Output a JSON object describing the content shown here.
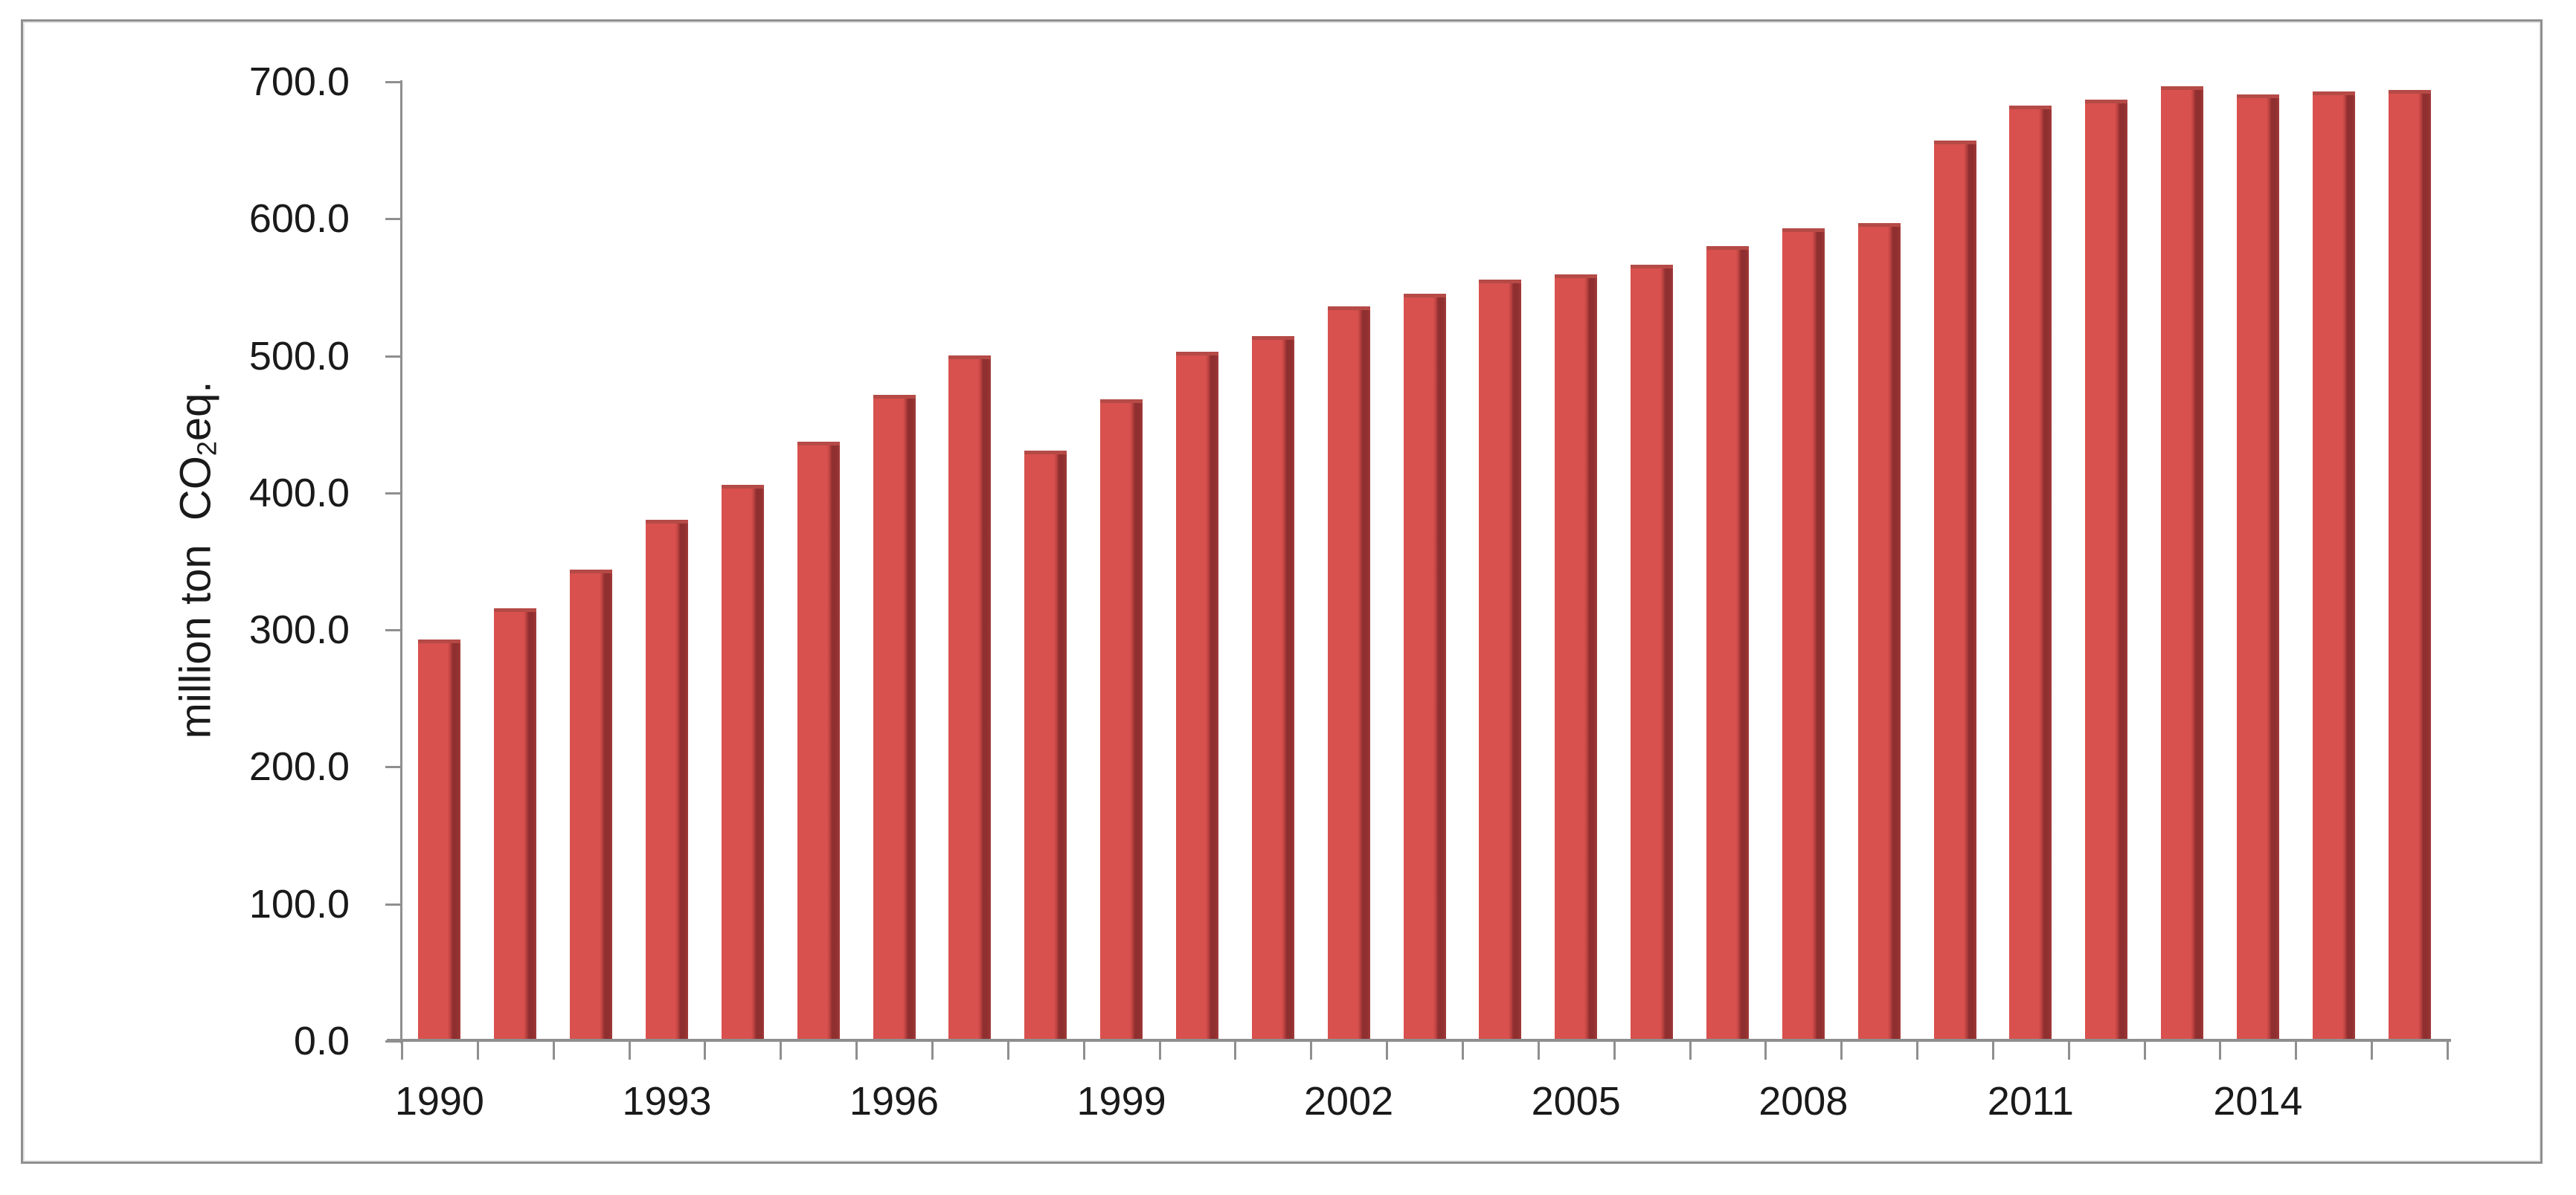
{
  "figure": {
    "background": "#ffffff",
    "border_color": "#8f8f8f"
  },
  "chart_data": {
    "type": "bar",
    "title": "",
    "ylabel": "million ton CO2eq.",
    "ylabel_prefix": "million ton  CO",
    "ylabel_sub": "2",
    "ylabel_suffix": "eq.",
    "xlabel": "",
    "categories": [
      "1990",
      "1991",
      "1992",
      "1993",
      "1994",
      "1995",
      "1996",
      "1997",
      "1998",
      "1999",
      "2000",
      "2001",
      "2002",
      "2003",
      "2004",
      "2005",
      "2006",
      "2007",
      "2008",
      "2009",
      "2010",
      "2011",
      "2012",
      "2013",
      "2014",
      "2015",
      "2016"
    ],
    "values": [
      292.9,
      315.6,
      344.1,
      380.6,
      405.9,
      437.3,
      471.3,
      500.1,
      430.6,
      468.5,
      502.9,
      514.6,
      536.0,
      545.5,
      555.9,
      559.4,
      566.5,
      580.3,
      593.0,
      596.8,
      657.1,
      682.7,
      687.1,
      696.7,
      690.9,
      692.9,
      694.1
    ],
    "ylim": [
      0,
      700
    ],
    "y_tick_labels": [
      "700.0",
      "600.0",
      "500.0",
      "400.0",
      "300.0",
      "200.0",
      "100.0",
      "0.0"
    ],
    "x_tick_labels": [
      "1990",
      "1993",
      "1996",
      "1999",
      "2002",
      "2005",
      "2008",
      "2011",
      "2014"
    ],
    "x_label_every": 3,
    "grid": false,
    "legend": "none",
    "colors": {
      "bar_main": "#d8514e",
      "bar_shade": "#8f2f30",
      "bar_shade_mid": "#bc4341",
      "bar_shade_light": "#a23a39",
      "bar_top": "#b54a46",
      "axis": "#8f8f8f",
      "text": "#1a1a1a"
    }
  }
}
